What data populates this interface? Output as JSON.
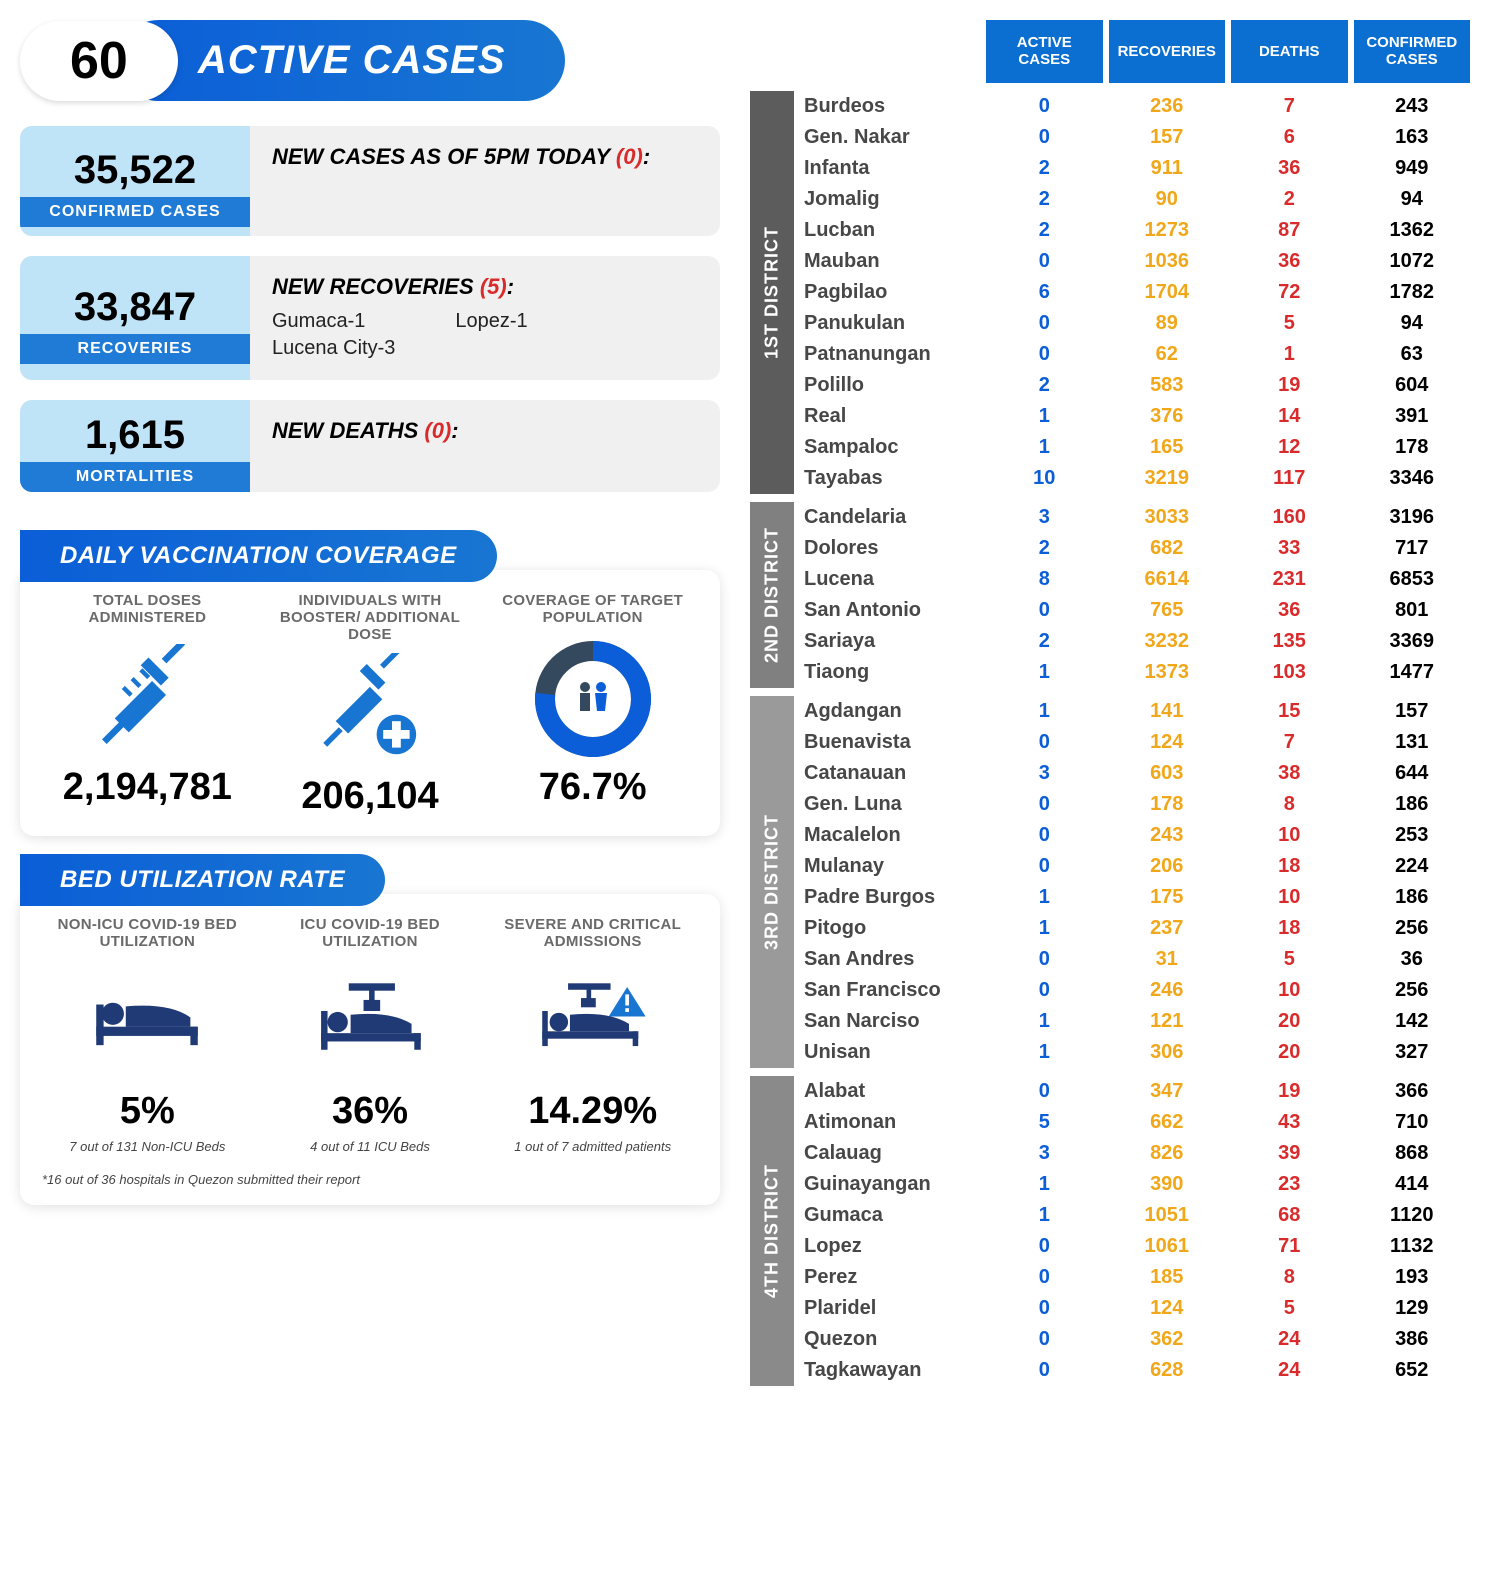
{
  "header": {
    "active_number": "60",
    "active_label": "ACTIVE CASES"
  },
  "cards": {
    "confirmed": {
      "number": "35,522",
      "label": "CONFIRMED CASES",
      "title": "NEW CASES AS OF 5PM TODAY",
      "paren": "(0)",
      "body_lines": []
    },
    "recoveries": {
      "number": "33,847",
      "label": "RECOVERIES",
      "title": "NEW RECOVERIES",
      "paren": "(5)",
      "body_col1": "Gumaca-1\nLucena City-3",
      "body_col2": "Lopez-1"
    },
    "mortalities": {
      "number": "1,615",
      "label": "MORTALITIES",
      "title": "NEW DEATHS",
      "paren": "(0)",
      "body_lines": []
    }
  },
  "vaccination": {
    "section_title": "DAILY VACCINATION COVERAGE",
    "cols": [
      {
        "title": "TOTAL DOSES ADMINISTERED",
        "value": "2,194,781"
      },
      {
        "title": "INDIVIDUALS WITH BOOSTER/ ADDITIONAL DOSE",
        "value": "206,104"
      },
      {
        "title": "COVERAGE OF TARGET POPULATION",
        "value": "76.7%"
      }
    ],
    "coverage_pct": 76.7,
    "colors": {
      "ring_fg": "#0b5ed7",
      "ring_bg": "#34495e",
      "syringe": "#1876d2"
    }
  },
  "bed": {
    "section_title": "BED UTILIZATION RATE",
    "cols": [
      {
        "title": "NON-ICU COVID-19 BED UTILIZATION",
        "value": "5%",
        "sub": "7 out of 131 Non-ICU Beds"
      },
      {
        "title": "ICU COVID-19 BED UTILIZATION",
        "value": "36%",
        "sub": "4 out of 11 ICU Beds"
      },
      {
        "title": "SEVERE AND CRITICAL ADMISSIONS",
        "value": "14.29%",
        "sub": "1 out of 7 admitted patients"
      }
    ],
    "footnote": "*16 out of 36 hospitals in Quezon submitted their report",
    "icon_color": "#1f3a74"
  },
  "table": {
    "headers": [
      "ACTIVE CASES",
      "RECOVERIES",
      "DEATHS",
      "CONFIRMED CASES"
    ],
    "colors": {
      "header_bg": "#0b6fd1",
      "name": "#474747",
      "active": "#0b5ed7",
      "recov": "#f1a71a",
      "death": "#d92b2b",
      "conf": "#000000"
    },
    "districts": [
      {
        "label": "1ST DISTRICT",
        "rows": [
          {
            "n": "Burdeos",
            "a": "0",
            "r": "236",
            "d": "7",
            "c": "243"
          },
          {
            "n": "Gen. Nakar",
            "a": "0",
            "r": "157",
            "d": "6",
            "c": "163"
          },
          {
            "n": "Infanta",
            "a": "2",
            "r": "911",
            "d": "36",
            "c": "949"
          },
          {
            "n": "Jomalig",
            "a": "2",
            "r": "90",
            "d": "2",
            "c": "94"
          },
          {
            "n": "Lucban",
            "a": "2",
            "r": "1273",
            "d": "87",
            "c": "1362"
          },
          {
            "n": "Mauban",
            "a": "0",
            "r": "1036",
            "d": "36",
            "c": "1072"
          },
          {
            "n": "Pagbilao",
            "a": "6",
            "r": "1704",
            "d": "72",
            "c": "1782"
          },
          {
            "n": "Panukulan",
            "a": "0",
            "r": "89",
            "d": "5",
            "c": "94"
          },
          {
            "n": "Patnanungan",
            "a": "0",
            "r": "62",
            "d": "1",
            "c": "63"
          },
          {
            "n": "Polillo",
            "a": "2",
            "r": "583",
            "d": "19",
            "c": "604"
          },
          {
            "n": "Real",
            "a": "1",
            "r": "376",
            "d": "14",
            "c": "391"
          },
          {
            "n": "Sampaloc",
            "a": "1",
            "r": "165",
            "d": "12",
            "c": "178"
          },
          {
            "n": "Tayabas",
            "a": "10",
            "r": "3219",
            "d": "117",
            "c": "3346"
          }
        ]
      },
      {
        "label": "2ND DISTRICT",
        "rows": [
          {
            "n": "Candelaria",
            "a": "3",
            "r": "3033",
            "d": "160",
            "c": "3196"
          },
          {
            "n": "Dolores",
            "a": "2",
            "r": "682",
            "d": "33",
            "c": "717"
          },
          {
            "n": "Lucena",
            "a": "8",
            "r": "6614",
            "d": "231",
            "c": "6853"
          },
          {
            "n": "San Antonio",
            "a": "0",
            "r": "765",
            "d": "36",
            "c": "801"
          },
          {
            "n": "Sariaya",
            "a": "2",
            "r": "3232",
            "d": "135",
            "c": "3369"
          },
          {
            "n": "Tiaong",
            "a": "1",
            "r": "1373",
            "d": "103",
            "c": "1477"
          }
        ]
      },
      {
        "label": "3RD DISTRICT",
        "rows": [
          {
            "n": "Agdangan",
            "a": "1",
            "r": "141",
            "d": "15",
            "c": "157"
          },
          {
            "n": "Buenavista",
            "a": "0",
            "r": "124",
            "d": "7",
            "c": "131"
          },
          {
            "n": "Catanauan",
            "a": "3",
            "r": "603",
            "d": "38",
            "c": "644"
          },
          {
            "n": "Gen. Luna",
            "a": "0",
            "r": "178",
            "d": "8",
            "c": "186"
          },
          {
            "n": "Macalelon",
            "a": "0",
            "r": "243",
            "d": "10",
            "c": "253"
          },
          {
            "n": "Mulanay",
            "a": "0",
            "r": "206",
            "d": "18",
            "c": "224"
          },
          {
            "n": "Padre Burgos",
            "a": "1",
            "r": "175",
            "d": "10",
            "c": "186"
          },
          {
            "n": "Pitogo",
            "a": "1",
            "r": "237",
            "d": "18",
            "c": "256"
          },
          {
            "n": "San Andres",
            "a": "0",
            "r": "31",
            "d": "5",
            "c": "36"
          },
          {
            "n": "San Francisco",
            "a": "0",
            "r": "246",
            "d": "10",
            "c": "256"
          },
          {
            "n": "San Narciso",
            "a": "1",
            "r": "121",
            "d": "20",
            "c": "142"
          },
          {
            "n": "Unisan",
            "a": "1",
            "r": "306",
            "d": "20",
            "c": "327"
          }
        ]
      },
      {
        "label": "4TH DISTRICT",
        "rows": [
          {
            "n": "Alabat",
            "a": "0",
            "r": "347",
            "d": "19",
            "c": "366"
          },
          {
            "n": "Atimonan",
            "a": "5",
            "r": "662",
            "d": "43",
            "c": "710"
          },
          {
            "n": "Calauag",
            "a": "3",
            "r": "826",
            "d": "39",
            "c": "868"
          },
          {
            "n": "Guinayangan",
            "a": "1",
            "r": "390",
            "d": "23",
            "c": "414"
          },
          {
            "n": "Gumaca",
            "a": "1",
            "r": "1051",
            "d": "68",
            "c": "1120"
          },
          {
            "n": "Lopez",
            "a": "0",
            "r": "1061",
            "d": "71",
            "c": "1132"
          },
          {
            "n": "Perez",
            "a": "0",
            "r": "185",
            "d": "8",
            "c": "193"
          },
          {
            "n": "Plaridel",
            "a": "0",
            "r": "124",
            "d": "5",
            "c": "129"
          },
          {
            "n": "Quezon",
            "a": "0",
            "r": "362",
            "d": "24",
            "c": "386"
          },
          {
            "n": "Tagkawayan",
            "a": "0",
            "r": "628",
            "d": "24",
            "c": "652"
          }
        ]
      }
    ]
  }
}
